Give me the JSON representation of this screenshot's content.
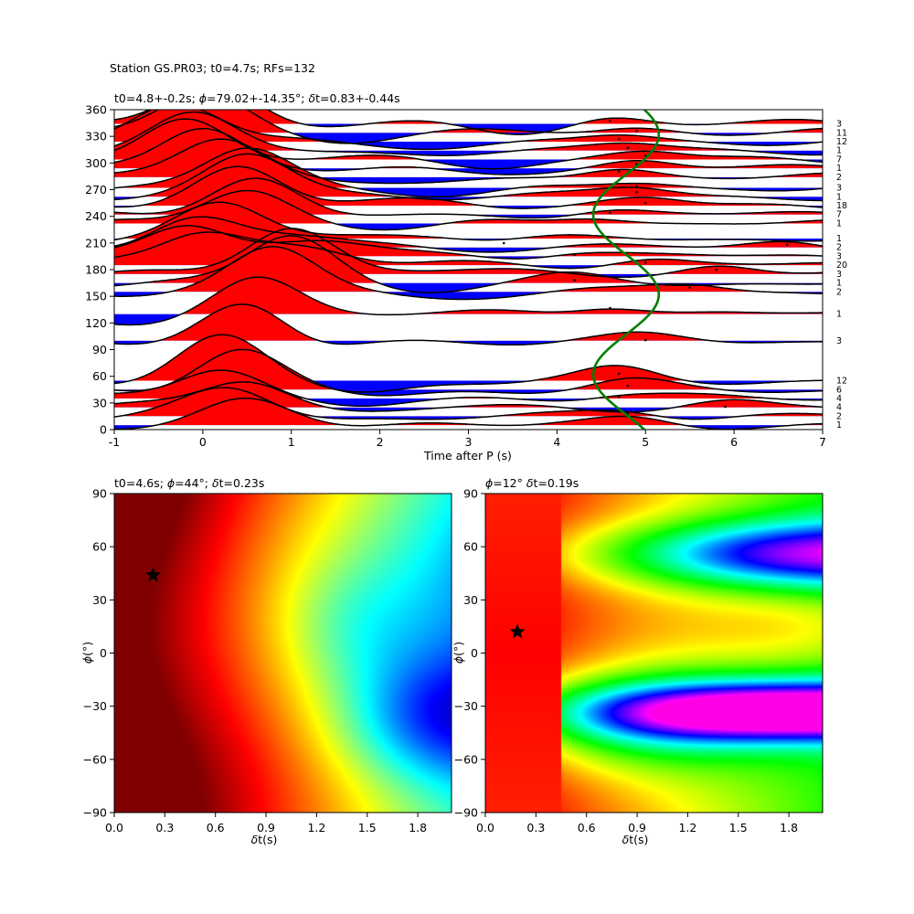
{
  "suptitle": "Station GS.PR03; t0=4.7s; RFs=132",
  "chart_data": [
    {
      "type": "area",
      "name": "receiver-function-traces",
      "title": "t0=4.8+-0.2s; $\\phi$=79.02+-14.35°; $\\delta$t=0.83+-0.44s",
      "title_parts": {
        "t0": "t0=4.8+-0.2s; ",
        "phi_sym": "ϕ",
        "phi": "=79.02+-14.35°; ",
        "dt_sym": "δ",
        "dt": "t=0.83+-0.44s"
      },
      "xlabel": "Time after P (s)",
      "ylabel": "",
      "xlim": [
        -1,
        7
      ],
      "ylim": [
        0,
        360
      ],
      "xticks": [
        "-1",
        "0",
        "1",
        "2",
        "3",
        "4",
        "5",
        "6",
        "7"
      ],
      "yticks": [
        "0",
        "30",
        "60",
        "90",
        "120",
        "150",
        "180",
        "210",
        "240",
        "270",
        "300",
        "330",
        "360"
      ],
      "positive_color": "#ff0000",
      "negative_color": "#0000ff",
      "trace_color": "#000000",
      "curve_color": "#008000",
      "green_curve": {
        "mean_time": 4.78,
        "amplitude": 0.37,
        "period_deg": 180,
        "peak_baz": 152
      },
      "bins": [
        {
          "baz": 5,
          "count": "1",
          "p1": [
            0.5,
            0.42
          ],
          "p2": [
            2.6,
            0.06
          ],
          "tr": [
            4.9,
            0.1
          ]
        },
        {
          "baz": 15,
          "count": "2",
          "p1": [
            0.3,
            0.48
          ],
          "p2": [
            2.5,
            -0.05
          ],
          "tr": [
            4.8,
            0.12
          ]
        },
        {
          "baz": 25,
          "count": "4",
          "p1": [
            0.5,
            0.55
          ],
          "p2": [
            1.8,
            -0.1
          ],
          "tr": [
            5.9,
            0.08
          ]
        },
        {
          "baz": 35,
          "count": "4",
          "p1": [
            0.2,
            0.62
          ],
          "p2": [
            1.7,
            -0.18
          ],
          "tr": [
            4.7,
            0.1
          ]
        },
        {
          "baz": 45,
          "count": "6",
          "p1": [
            0.4,
            0.74
          ],
          "p2": [
            2.0,
            -0.12
          ],
          "tr": [
            4.8,
            0.14
          ]
        },
        {
          "baz": 55,
          "count": "12",
          "p1": [
            0.2,
            0.8
          ],
          "p2": [
            1.8,
            -0.2
          ],
          "tr": [
            4.7,
            0.2
          ]
        },
        {
          "baz": 100,
          "count": "3",
          "p1": [
            0.5,
            0.8
          ],
          "p2": [
            1.0,
            -0.25
          ],
          "tr": [
            5.0,
            0.08
          ]
        },
        {
          "baz": 130,
          "count": "1",
          "p1": [
            0.6,
            0.75
          ],
          "p2": [
            -0.8,
            -0.3
          ],
          "tr": [
            4.6,
            0.18
          ]
        },
        {
          "baz": 155,
          "count": "2",
          "p1": [
            0.8,
            0.82
          ],
          "p2": [
            2.5,
            -0.1
          ],
          "tr": [
            5.5,
            0.15
          ]
        },
        {
          "baz": 165,
          "count": "1",
          "p1": [
            1.0,
            0.88
          ],
          "p2": [
            2.4,
            -0.12
          ],
          "tr": [
            4.2,
            0.12
          ]
        },
        {
          "baz": 175,
          "count": "3",
          "p1": [
            1.0,
            0.86
          ],
          "p2": [
            2.3,
            0.1
          ],
          "tr": [
            5.8,
            0.15
          ]
        },
        {
          "baz": 185,
          "count": "20",
          "p1": [
            0.0,
            0.6
          ],
          "p2": [
            1.1,
            0.35
          ],
          "tr": [
            5.0,
            0.12
          ]
        },
        {
          "baz": 195,
          "count": "3",
          "p1": [
            -0.2,
            0.62
          ],
          "p2": [
            1.3,
            0.3
          ],
          "tr": [
            4.2,
            0.1
          ]
        },
        {
          "baz": 205,
          "count": "2",
          "p1": [
            -0.1,
            0.55
          ],
          "p2": [
            1.0,
            0.2
          ],
          "tr": [
            6.6,
            0.12
          ]
        },
        {
          "baz": 215,
          "count": "1",
          "p1": [
            0.2,
            0.65
          ],
          "p2": [
            2.5,
            0.12
          ],
          "tr": [
            3.4,
            -0.05
          ]
        },
        {
          "baz": 232,
          "count": "1",
          "p1": [
            0.5,
            0.62
          ],
          "p2": [
            2.3,
            -0.08
          ],
          "tr": [
            4.4,
            0.14
          ]
        },
        {
          "baz": 242,
          "count": "7",
          "p1": [
            0.6,
            0.7
          ],
          "p2": [
            2.6,
            -0.08
          ],
          "tr": [
            4.6,
            0.1
          ]
        },
        {
          "baz": 252,
          "count": "18",
          "p1": [
            0.4,
            0.75
          ],
          "p2": [
            2.7,
            0.1
          ],
          "tr": [
            5.0,
            0.12
          ]
        },
        {
          "baz": 262,
          "count": "1",
          "p1": [
            0.5,
            0.8
          ],
          "p2": [
            3.4,
            0.06
          ],
          "tr": [
            4.9,
            0.15
          ]
        },
        {
          "baz": 272,
          "count": "3",
          "p1": [
            0.5,
            0.72
          ],
          "p2": [
            3.0,
            -0.12
          ],
          "tr": [
            4.9,
            0.1
          ]
        },
        {
          "baz": 284,
          "count": "2",
          "p1": [
            0.2,
            0.7
          ],
          "p2": [
            2.8,
            -0.15
          ],
          "tr": [
            4.7,
            0.18
          ]
        },
        {
          "baz": 294,
          "count": "1",
          "p1": [
            0.0,
            0.75
          ],
          "p2": [
            3.0,
            -0.12
          ],
          "tr": [
            4.9,
            0.15
          ]
        },
        {
          "baz": 304,
          "count": "7",
          "p1": [
            -0.2,
            0.78
          ],
          "p2": [
            3.2,
            -0.1
          ],
          "tr": [
            5.0,
            0.14
          ]
        },
        {
          "baz": 314,
          "count": "1",
          "p1": [
            -0.1,
            0.74
          ],
          "p2": [
            1.5,
            -0.1
          ],
          "tr": [
            4.8,
            0.12
          ]
        },
        {
          "baz": 324,
          "count": "12",
          "p1": [
            -0.3,
            0.7
          ],
          "p2": [
            3.0,
            -0.1
          ],
          "tr": [
            4.7,
            0.12
          ]
        },
        {
          "baz": 334,
          "count": "11",
          "p1": [
            0.0,
            0.72
          ],
          "p2": [
            1.5,
            -0.12
          ],
          "tr": [
            4.9,
            0.1
          ]
        },
        {
          "baz": 344,
          "count": "3",
          "p1": [
            0.1,
            0.75
          ],
          "p2": [
            3.5,
            -0.18
          ],
          "tr": [
            4.6,
            0.15
          ]
        }
      ]
    },
    {
      "type": "heatmap",
      "name": "energy-grid-left",
      "title": "t0=4.6s; $\\phi$=44°; $\\delta$t=0.23s",
      "title_parts": {
        "t0": "t0=4.6s; ",
        "phi_sym": "ϕ",
        "phi": "=44°; ",
        "dt_sym": "δ",
        "dt": "t=0.23s"
      },
      "xlabel": "$\\delta$t(s)",
      "xlabel_parts": {
        "sym": "δ",
        "rest": "t(s)"
      },
      "ylabel": "$\\phi$(°)",
      "ylabel_parts": {
        "sym": "ϕ",
        "rest": "(°)"
      },
      "xlim": [
        0,
        2
      ],
      "ylim": [
        -90,
        90
      ],
      "xticks": [
        "0.0",
        "0.3",
        "0.6",
        "0.9",
        "1.2",
        "1.5",
        "1.8"
      ],
      "yticks": [
        "−90",
        "−60",
        "−30",
        "0",
        "30",
        "60",
        "90"
      ],
      "colormap": "jet",
      "best": {
        "dt": 0.23,
        "phi": 44
      },
      "field": {
        "max_at": {
          "dt": 0.0,
          "phi": 60
        },
        "min_at": {
          "dt": 2.0,
          "phi": -38
        }
      }
    },
    {
      "type": "heatmap",
      "name": "energy-grid-right",
      "title": "$\\phi$=12° $\\delta$t=0.19s",
      "title_parts": {
        "phi_sym": "ϕ",
        "phi": "=12° ",
        "dt_sym": "δ",
        "dt": "t=0.19s"
      },
      "xlabel": "$\\delta$t(s)",
      "xlabel_parts": {
        "sym": "δ",
        "rest": "t(s)"
      },
      "ylabel": "$\\phi$(°)",
      "ylabel_parts": {
        "sym": "ϕ",
        "rest": "(°)"
      },
      "xlim": [
        0,
        2
      ],
      "ylim": [
        -90,
        90
      ],
      "xticks": [
        "0.0",
        "0.3",
        "0.6",
        "0.9",
        "1.2",
        "1.5",
        "1.8"
      ],
      "yticks": [
        "−90",
        "−60",
        "−30",
        "0",
        "30",
        "60",
        "90"
      ],
      "colormap": "hsv",
      "best": {
        "dt": 0.19,
        "phi": 12
      },
      "field": {
        "min_at": {
          "dt": 2.0,
          "phi": -32
        },
        "secondary_min_at": {
          "dt": 2.0,
          "phi": 56
        }
      }
    }
  ]
}
